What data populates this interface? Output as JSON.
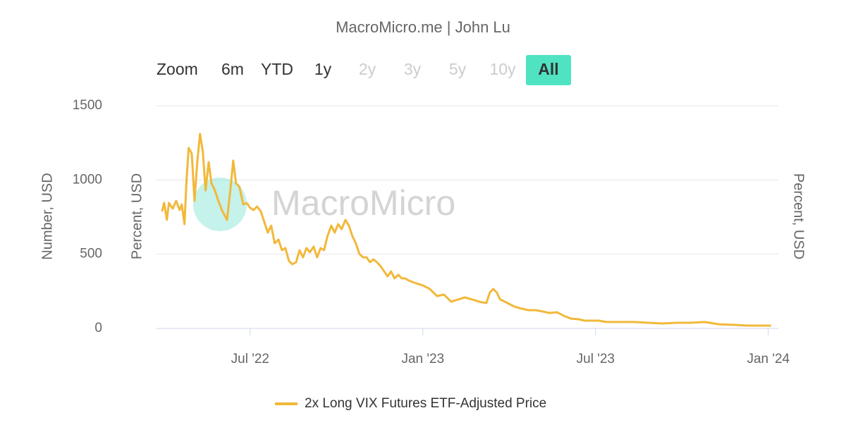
{
  "chart_data": {
    "type": "line",
    "title": "MacroMicro.me | John Lu",
    "range_selector": {
      "label": "Zoom",
      "buttons": [
        "6m",
        "YTD",
        "1y",
        "2y",
        "3y",
        "5y",
        "10y",
        "All"
      ]
    },
    "watermark": "MacroMicro",
    "ylabels": [
      "Number, USD",
      "Percent, USD"
    ],
    "y2label": "Percent, USD",
    "ylim": [
      0,
      1500
    ],
    "yticks": [
      0,
      500,
      1000,
      1500
    ],
    "grid": true,
    "xlim": [
      2022.229,
      2024.029
    ],
    "xticks": [
      {
        "value": 2022.5,
        "label": "Jul '22"
      },
      {
        "value": 2023.0,
        "label": "Jan '23"
      },
      {
        "value": 2023.5,
        "label": "Jul '23"
      },
      {
        "value": 2024.0,
        "label": "Jan '24"
      }
    ],
    "x": [
      2022.245,
      2022.251,
      2022.259,
      2022.265,
      2022.276,
      2022.286,
      2022.296,
      2022.302,
      2022.31,
      2022.316,
      2022.322,
      2022.331,
      2022.339,
      2022.347,
      2022.355,
      2022.363,
      2022.371,
      2022.38,
      2022.388,
      2022.398,
      2022.408,
      2022.42,
      2022.433,
      2022.443,
      2022.451,
      2022.459,
      2022.469,
      2022.48,
      2022.49,
      2022.5,
      2022.51,
      2022.52,
      2022.531,
      2022.541,
      2022.551,
      2022.561,
      2022.571,
      2022.582,
      2022.592,
      2022.602,
      2022.612,
      2022.622,
      2022.633,
      2022.643,
      2022.653,
      2022.663,
      2022.673,
      2022.684,
      2022.694,
      2022.704,
      2022.714,
      2022.724,
      2022.735,
      2022.745,
      2022.755,
      2022.765,
      2022.776,
      2022.786,
      2022.796,
      2022.806,
      2022.816,
      2022.827,
      2022.837,
      2022.847,
      2022.857,
      2022.867,
      2022.878,
      2022.888,
      2022.898,
      2022.908,
      2022.918,
      2022.929,
      2022.939,
      2022.949,
      2022.959,
      2022.98,
      2023.0,
      2023.02,
      2023.041,
      2023.061,
      2023.082,
      2023.102,
      2023.122,
      2023.143,
      2023.163,
      2023.184,
      2023.194,
      2023.204,
      2023.214,
      2023.224,
      2023.245,
      2023.265,
      2023.286,
      2023.306,
      2023.327,
      2023.347,
      2023.367,
      2023.388,
      2023.408,
      2023.429,
      2023.449,
      2023.469,
      2023.49,
      2023.51,
      2023.531,
      2023.571,
      2023.612,
      2023.653,
      2023.694,
      2023.735,
      2023.776,
      2023.816,
      2023.857,
      2023.898,
      2023.939,
      2023.98,
      2024.008
    ],
    "series": [
      {
        "name": "2x Long VIX Futures ETF-Adjusted Price",
        "color": "#f2b83a",
        "values": [
          788,
          845,
          731,
          845,
          807,
          859,
          797,
          835,
          702,
          1000,
          1215,
          1177,
          859,
          1120,
          1310,
          1191,
          930,
          1120,
          978,
          930,
          859,
          788,
          731,
          940,
          1130,
          978,
          954,
          835,
          845,
          812,
          797,
          821,
          788,
          717,
          645,
          692,
          574,
          598,
          527,
          541,
          456,
          432,
          446,
          527,
          479,
          541,
          513,
          551,
          479,
          541,
          527,
          622,
          692,
          645,
          702,
          669,
          731,
          692,
          622,
          574,
          503,
          479,
          479,
          446,
          465,
          446,
          418,
          384,
          351,
          384,
          337,
          361,
          337,
          337,
          323,
          304,
          290,
          266,
          218,
          228,
          180,
          195,
          209,
          195,
          180,
          171,
          242,
          266,
          242,
          195,
          171,
          147,
          133,
          123,
          123,
          114,
          104,
          109,
          85,
          66,
          62,
          52,
          52,
          52,
          43,
          43,
          43,
          38,
          33,
          38,
          38,
          43,
          28,
          24,
          19,
          19,
          19
        ]
      }
    ]
  }
}
